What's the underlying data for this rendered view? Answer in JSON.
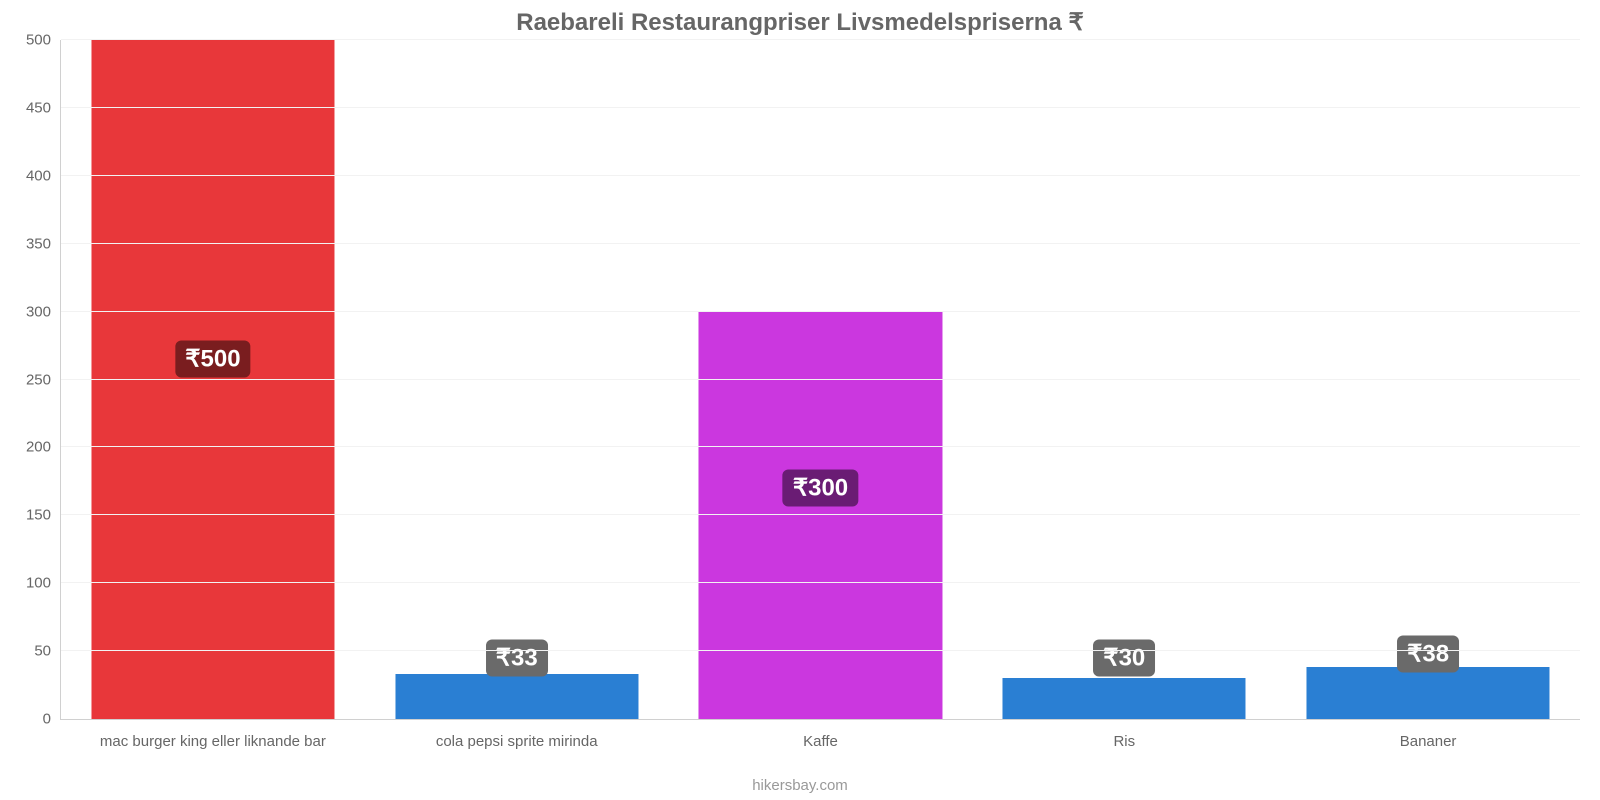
{
  "chart": {
    "type": "bar",
    "title": "Raebareli Restaurangpriser Livsmedelspriserna ₹",
    "title_fontsize": 24,
    "title_color": "#666666",
    "footer": "hikersbay.com",
    "footer_fontsize": 15,
    "footer_color": "#999999",
    "background_color": "#ffffff",
    "grid_color": "#f2f2f2",
    "axis_color": "#d0d0d0",
    "tick_color": "#666666",
    "tick_fontsize": 15,
    "xlabel_fontsize": 15,
    "xlabel_color": "#666666",
    "ylim": [
      0,
      500
    ],
    "ytick_step": 50,
    "yticks": [
      0,
      50,
      100,
      150,
      200,
      250,
      300,
      350,
      400,
      450,
      500
    ],
    "bar_width_pct": 80,
    "badge_fontsize": 24,
    "badge_text_color": "#ffffff",
    "categories": [
      "mac burger king eller liknande bar",
      "cola pepsi sprite mirinda",
      "Kaffe",
      "Ris",
      "Bananer"
    ],
    "values": [
      500,
      33,
      300,
      30,
      38
    ],
    "value_labels": [
      "₹500",
      "₹33",
      "₹300",
      "₹30",
      "₹38"
    ],
    "bar_colors": [
      "#e8373a",
      "#2a7fd3",
      "#cb37df",
      "#2a7fd3",
      "#2a7fd3"
    ],
    "badge_bg_colors": [
      "#7a1d1f",
      "#6a6a6a",
      "#6a1c74",
      "#6a6a6a",
      "#6a6a6a"
    ],
    "badge_center_values": [
      265,
      45,
      170,
      45,
      48
    ]
  }
}
